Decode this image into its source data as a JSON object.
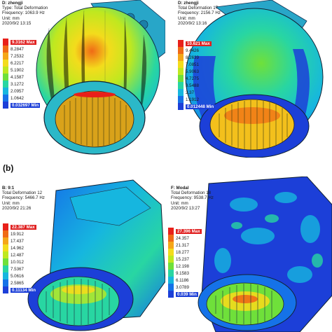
{
  "marker": "(b)",
  "colors": [
    "#e8201a",
    "#f06a16",
    "#f5a618",
    "#f3dc1c",
    "#bfe81f",
    "#6fe03a",
    "#28d6a2",
    "#16b6df",
    "#1572e8",
    "#1c3fd8"
  ],
  "panels": [
    {
      "title": "D: zhengji",
      "type": "Type: Total Deformation",
      "frequency": "Frequency: 1063.9 Hz",
      "unit": "Unit: mm",
      "date": "2020/9/2 13:15",
      "legend": [
        "9.3162 Max",
        "8.2847",
        "7.2532",
        "6.2217",
        "5.1902",
        "4.1587",
        "3.1272",
        "2.0957",
        "1.0642",
        "0.032697 Min"
      ]
    },
    {
      "title": "D: zhengji",
      "type": "Total Deformation 17",
      "frequency": "Frequency: 2156.7 Hz",
      "unit": "Unit: mm",
      "date": "2020/9/2 13:16",
      "legend": [
        "10.621 Max",
        "9.4426",
        "8.2639",
        "7.0851",
        "5.9063",
        "4.7275",
        "3.5488",
        "2.37",
        "1.1912",
        "0.012448 Min"
      ]
    },
    {
      "title": "B: 9:1",
      "type": "Total Deformation 12",
      "frequency": "Frequency: 5466.7 Hz",
      "unit": "Unit: mm",
      "date": "2020/9/2 21:26",
      "legend": [
        "22.387 Max",
        "19.912",
        "17.437",
        "14.962",
        "12.487",
        "10.012",
        "7.5367",
        "5.0616",
        "2.5865",
        "0.11134 Min"
      ]
    },
    {
      "title": "F: Modal",
      "type": "Total Deformation 18",
      "frequency": "Frequency: 9538.7 Hz",
      "unit": "Unit: mm",
      "date": "2020/9/2 13:27",
      "legend": [
        "27.396 Max",
        "24.357",
        "21.317",
        "18.277",
        "15.237",
        "12.198",
        "9.1583",
        "6.1186",
        "3.0789",
        "0.039 Min"
      ]
    }
  ]
}
